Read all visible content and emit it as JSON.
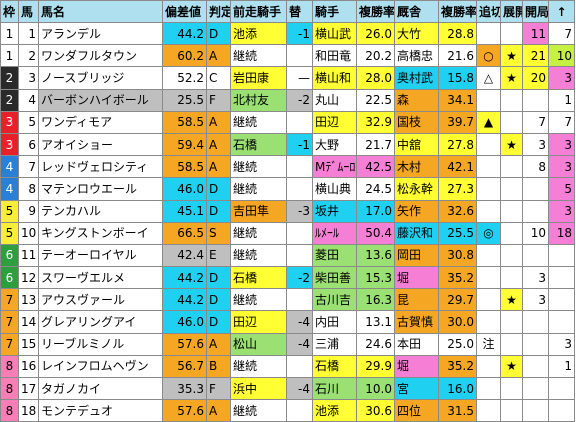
{
  "columns": [
    "枠",
    "馬",
    "馬名",
    "偏差値",
    "判定",
    "前走騎手",
    "替",
    "騎手",
    "複勝率",
    "厩舎",
    "複勝率",
    "追切",
    "展開",
    "開局",
    "↑"
  ],
  "colors": {
    "header": "#aee0f0",
    "waku": {
      "1": "#ffffff",
      "2": "#2a2a2a",
      "3": "#e8202a",
      "4": "#2b7fd4",
      "5": "#f6ee3a",
      "6": "#2e9e3e",
      "7": "#f5a623",
      "8": "#f67fb8"
    },
    "waku_text": {
      "1": "#000000",
      "2": "#ffffff",
      "3": "#ffffff",
      "4": "#ffffff",
      "5": "#000000",
      "6": "#ffffff",
      "7": "#000000",
      "8": "#000000"
    },
    "cyan": "#1fd0f0",
    "orange": "#f5a623",
    "yellow": "#ffff33",
    "gray": "#bfbfbf",
    "green": "#9be072",
    "pink": "#f67fd6",
    "lime": "#c6f043",
    "white": "#ffffff"
  },
  "rows": [
    {
      "waku": "1",
      "uma": "1",
      "name": "アランデル",
      "hensa": "44.2",
      "hantei": "D",
      "zensou": "池添",
      "kae": "-1",
      "kishu": "横山武",
      "fuku1": "26.0",
      "kyusha": "大竹",
      "fuku2": "28.8",
      "oikiri": "",
      "tenkai": "",
      "a": "11",
      "b": "7",
      "bg": {
        "name": "#ffffff",
        "hensa": "#1fd0f0",
        "zensou": "#ffff33",
        "kae": "#1fd0f0",
        "kishu": "#ffff33",
        "kyusha": "#ffff33",
        "a": "#f67fd6",
        "b": "#ffffff"
      }
    },
    {
      "waku": "1",
      "uma": "2",
      "name": "ワンダフルタウン",
      "hensa": "60.2",
      "hantei": "A",
      "zensou": "継続",
      "kae": "",
      "kishu": "和田竜",
      "fuku1": "20.2",
      "kyusha": "高橋忠",
      "fuku2": "21.6",
      "oikiri": "○",
      "tenkai": "★",
      "a": "21",
      "b": "10",
      "bg": {
        "name": "#ffffff",
        "hensa": "#f5a623",
        "zensou": "#ffffff",
        "kae": "#ffffff",
        "kishu": "#ffffff",
        "kyusha": "#ffffff",
        "a": "#ffff33",
        "b": "#c6f043",
        "oikiri": "#f5a623",
        "tenkai": "#ffff33"
      }
    },
    {
      "waku": "2",
      "uma": "3",
      "name": "ノースブリッジ",
      "hensa": "52.2",
      "hantei": "C",
      "zensou": "岩田康",
      "kae": "—",
      "kishu": "横山和",
      "fuku1": "28.0",
      "kyusha": "奥村武",
      "fuku2": "15.8",
      "oikiri": "△",
      "tenkai": "★",
      "a": "20",
      "b": "3",
      "bg": {
        "name": "#ffffff",
        "hensa": "#ffffff",
        "zensou": "#ffff33",
        "kae": "#ffffff",
        "kishu": "#ffff33",
        "kyusha": "#1fd0f0",
        "fuku2": "#1fd0f0",
        "a": "#ffff33",
        "b": "#f67fd6",
        "tenkai": "#ffff33"
      }
    },
    {
      "waku": "2",
      "uma": "4",
      "name": "バーボンハイボール",
      "hensa": "25.5",
      "hantei": "F",
      "zensou": "北村友",
      "kae": "-2",
      "kishu": "丸山",
      "fuku1": "22.5",
      "kyusha": "森",
      "fuku2": "34.1",
      "oikiri": "",
      "tenkai": "",
      "a": "",
      "b": "1",
      "bg": {
        "name": "#bfbfbf",
        "hensa": "#bfbfbf",
        "zensou": "#9be072",
        "kae": "#bfbfbf",
        "kishu": "#ffffff",
        "kyusha": "#f5a623",
        "fuku2": "#f5a623",
        "a": "#ffffff",
        "b": "#ffffff"
      }
    },
    {
      "waku": "3",
      "uma": "5",
      "name": "ワンディモア",
      "hensa": "58.5",
      "hantei": "A",
      "zensou": "継続",
      "kae": "",
      "kishu": "田辺",
      "fuku1": "32.9",
      "kyusha": "国枝",
      "fuku2": "39.7",
      "oikiri": "▲",
      "tenkai": "",
      "a": "7",
      "b": "7",
      "bg": {
        "name": "#ffffff",
        "hensa": "#f5a623",
        "zensou": "#ffffff",
        "kae": "#ffffff",
        "kishu": "#ffff33",
        "kyusha": "#f5a623",
        "fuku2": "#f5a623",
        "a": "#ffffff",
        "b": "#ffffff",
        "oikiri": "#ffff33"
      }
    },
    {
      "waku": "3",
      "uma": "6",
      "name": "アオイショー",
      "hensa": "59.4",
      "hantei": "A",
      "zensou": "石橋",
      "kae": "-1",
      "kishu": "大野",
      "fuku1": "21.7",
      "kyusha": "中舘",
      "fuku2": "27.8",
      "oikiri": "",
      "tenkai": "★",
      "a": "3",
      "b": "3",
      "bg": {
        "name": "#ffffff",
        "hensa": "#f5a623",
        "zensou": "#9be072",
        "kae": "#1fd0f0",
        "kishu": "#ffffff",
        "kyusha": "#ffff33",
        "a": "#ffffff",
        "b": "#f67fd6",
        "tenkai": "#ffff33"
      }
    },
    {
      "waku": "4",
      "uma": "7",
      "name": "レッドヴェロシティ",
      "hensa": "58.5",
      "hantei": "A",
      "zensou": "継続",
      "kae": "",
      "kishu": "Mﾃﾞﾑｰﾛ",
      "fuku1": "42.5",
      "kyusha": "木村",
      "fuku2": "42.1",
      "oikiri": "",
      "tenkai": "",
      "a": "8",
      "b": "3",
      "bg": {
        "name": "#ffffff",
        "hensa": "#f5a623",
        "zensou": "#ffffff",
        "kae": "#ffffff",
        "kishu": "#f67fd6",
        "kyusha": "#f5a623",
        "fuku2": "#f5a623",
        "a": "#ffffff",
        "b": "#f67fd6"
      }
    },
    {
      "waku": "4",
      "uma": "8",
      "name": "マテンロウエール",
      "hensa": "46.0",
      "hantei": "D",
      "zensou": "継続",
      "kae": "",
      "kishu": "横山典",
      "fuku1": "24.5",
      "kyusha": "松永幹",
      "fuku2": "27.3",
      "oikiri": "",
      "tenkai": "",
      "a": "",
      "b": "5",
      "bg": {
        "name": "#ffffff",
        "hensa": "#1fd0f0",
        "zensou": "#ffffff",
        "kae": "#ffffff",
        "kishu": "#ffffff",
        "kyusha": "#ffff33",
        "a": "#ffffff",
        "b": "#f67fd6"
      }
    },
    {
      "waku": "5",
      "uma": "9",
      "name": "テンカハル",
      "hensa": "45.1",
      "hantei": "D",
      "zensou": "吉田隼",
      "kae": "-3",
      "kishu": "坂井",
      "fuku1": "17.0",
      "kyusha": "矢作",
      "fuku2": "32.6",
      "oikiri": "",
      "tenkai": "",
      "a": "",
      "b": "3",
      "bg": {
        "name": "#ffffff",
        "hensa": "#1fd0f0",
        "zensou": "#f5a623",
        "kae": "#bfbfbf",
        "kishu": "#1fd0f0",
        "kyusha": "#f5a623",
        "fuku2": "#f5a623",
        "a": "#ffffff",
        "b": "#f67fd6"
      }
    },
    {
      "waku": "5",
      "uma": "10",
      "name": "キングストンボーイ",
      "hensa": "66.5",
      "hantei": "S",
      "zensou": "継続",
      "kae": "",
      "kishu": "ﾙﾒｰﾙ",
      "fuku1": "50.4",
      "kyusha": "藤沢和",
      "fuku2": "25.5",
      "oikiri": "◎",
      "tenkai": "",
      "a": "10",
      "b": "18",
      "bg": {
        "name": "#ffffff",
        "hensa": "#f5a623",
        "zensou": "#ffffff",
        "kae": "#ffffff",
        "kishu": "#f67fd6",
        "kyusha": "#1fd0f0",
        "fuku2": "#1fd0f0",
        "a": "#ffffff",
        "b": "#f67fd6",
        "oikiri": "#1fd0f0"
      }
    },
    {
      "waku": "6",
      "uma": "11",
      "name": "テーオーロイヤル",
      "hensa": "42.4",
      "hantei": "E",
      "zensou": "継続",
      "kae": "",
      "kishu": "菱田",
      "fuku1": "13.6",
      "kyusha": "岡田",
      "fuku2": "30.8",
      "oikiri": "",
      "tenkai": "",
      "a": "",
      "b": "",
      "bg": {
        "name": "#ffffff",
        "hensa": "#bfbfbf",
        "zensou": "#ffffff",
        "kae": "#ffffff",
        "kishu": "#9be072",
        "kyusha": "#f5a623",
        "fuku2": "#f5a623",
        "a": "#ffffff",
        "b": "#ffffff"
      }
    },
    {
      "waku": "6",
      "uma": "12",
      "name": "スワーヴエルメ",
      "hensa": "44.2",
      "hantei": "D",
      "zensou": "石橋",
      "kae": "-2",
      "kishu": "柴田善",
      "fuku1": "15.3",
      "kyusha": "堀",
      "fuku2": "35.2",
      "oikiri": "",
      "tenkai": "",
      "a": "3",
      "b": "",
      "bg": {
        "name": "#ffffff",
        "hensa": "#1fd0f0",
        "zensou": "#ffff33",
        "kae": "#1fd0f0",
        "kishu": "#9be072",
        "kyusha": "#f67fd6",
        "fuku2": "#f5a623",
        "a": "#ffffff",
        "b": "#ffffff"
      }
    },
    {
      "waku": "7",
      "uma": "13",
      "name": "アウスヴァール",
      "hensa": "44.2",
      "hantei": "D",
      "zensou": "継続",
      "kae": "",
      "kishu": "古川吉",
      "fuku1": "16.3",
      "kyusha": "昆",
      "fuku2": "29.7",
      "oikiri": "",
      "tenkai": "★",
      "a": "3",
      "b": "",
      "bg": {
        "name": "#ffffff",
        "hensa": "#1fd0f0",
        "zensou": "#ffffff",
        "kae": "#ffffff",
        "kishu": "#9be072",
        "kyusha": "#f5a623",
        "fuku2": "#f5a623",
        "a": "#ffffff",
        "b": "#ffffff",
        "tenkai": "#ffff33"
      }
    },
    {
      "waku": "7",
      "uma": "14",
      "name": "グレアリングアイ",
      "hensa": "46.0",
      "hantei": "D",
      "zensou": "田辺",
      "kae": "-4",
      "kishu": "内田",
      "fuku1": "13.1",
      "kyusha": "古賀慎",
      "fuku2": "30.0",
      "oikiri": "",
      "tenkai": "",
      "a": "",
      "b": "",
      "bg": {
        "name": "#ffffff",
        "hensa": "#1fd0f0",
        "zensou": "#ffff33",
        "kae": "#bfbfbf",
        "kishu": "#ffffff",
        "kyusha": "#f5a623",
        "fuku2": "#f5a623",
        "a": "#ffffff",
        "b": "#ffffff"
      }
    },
    {
      "waku": "7",
      "uma": "15",
      "name": "リーブルミノル",
      "hensa": "57.6",
      "hantei": "A",
      "zensou": "松山",
      "kae": "-4",
      "kishu": "三浦",
      "fuku1": "24.6",
      "kyusha": "本田",
      "fuku2": "25.0",
      "oikiri": "注",
      "tenkai": "",
      "a": "",
      "b": "3",
      "bg": {
        "name": "#ffffff",
        "hensa": "#f5a623",
        "zensou": "#9be072",
        "kae": "#bfbfbf",
        "kishu": "#ffffff",
        "kyusha": "#ffffff",
        "a": "#ffffff",
        "b": "#ffffff"
      }
    },
    {
      "waku": "8",
      "uma": "16",
      "name": "レインフロムヘヴン",
      "hensa": "56.7",
      "hantei": "B",
      "zensou": "継続",
      "kae": "",
      "kishu": "石橋",
      "fuku1": "29.9",
      "kyusha": "堀",
      "fuku2": "35.2",
      "oikiri": "",
      "tenkai": "★",
      "a": "",
      "b": "1",
      "bg": {
        "name": "#ffffff",
        "hensa": "#f5a623",
        "zensou": "#ffffff",
        "kae": "#ffffff",
        "kishu": "#ffff33",
        "kyusha": "#f67fd6",
        "fuku2": "#f5a623",
        "a": "#ffffff",
        "b": "#ffffff",
        "tenkai": "#ffff33"
      }
    },
    {
      "waku": "8",
      "uma": "17",
      "name": "タガノカイ",
      "hensa": "35.3",
      "hantei": "F",
      "zensou": "浜中",
      "kae": "-4",
      "kishu": "石川",
      "fuku1": "10.0",
      "kyusha": "宮",
      "fuku2": "16.0",
      "oikiri": "",
      "tenkai": "",
      "a": "",
      "b": "",
      "bg": {
        "name": "#ffffff",
        "hensa": "#bfbfbf",
        "zensou": "#ffff33",
        "kae": "#bfbfbf",
        "kishu": "#9be072",
        "kyusha": "#1fd0f0",
        "fuku2": "#1fd0f0",
        "a": "#ffffff",
        "b": "#ffffff"
      }
    },
    {
      "waku": "8",
      "uma": "18",
      "name": "モンテデュオ",
      "hensa": "57.6",
      "hantei": "A",
      "zensou": "継続",
      "kae": "",
      "kishu": "池添",
      "fuku1": "30.6",
      "kyusha": "四位",
      "fuku2": "31.5",
      "oikiri": "",
      "tenkai": "",
      "a": "",
      "b": "",
      "bg": {
        "name": "#ffffff",
        "hensa": "#f5a623",
        "zensou": "#ffffff",
        "kae": "#ffffff",
        "kishu": "#ffff33",
        "kyusha": "#f5a623",
        "fuku2": "#f5a623",
        "a": "#ffffff",
        "b": "#ffffff"
      }
    }
  ]
}
